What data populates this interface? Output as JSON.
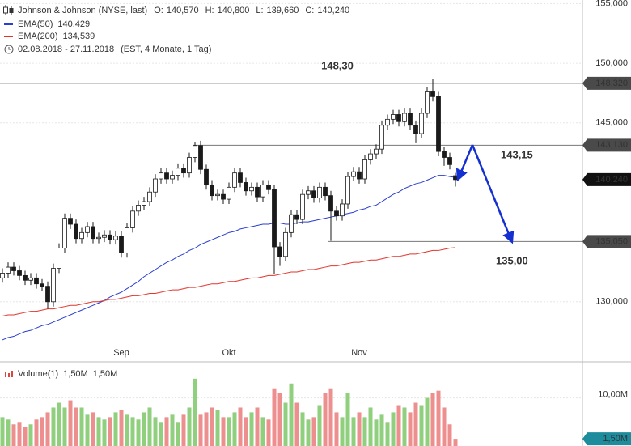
{
  "chart_data": {
    "type": "candlestick",
    "title": "Johnson & Johnson (NYSE, last)",
    "quote": [
      {
        "key": "O:",
        "value": 140.57,
        "label": "140,570"
      },
      {
        "key": "H:",
        "value": 140.8,
        "label": "140,800"
      },
      {
        "key": "L:",
        "value": 139.66,
        "label": "139,660"
      },
      {
        "key": "C:",
        "value": 140.24,
        "label": "140,240"
      }
    ],
    "period": "02.08.2018 - 27.11.2018",
    "period_note": "(EST, 4 Monate, 1 Tag)",
    "categories": [
      null,
      null,
      null,
      null,
      null,
      null,
      null,
      null,
      null,
      null,
      null,
      null,
      null,
      null,
      null,
      null,
      null,
      null,
      null,
      null,
      null,
      "Sep",
      null,
      null,
      null,
      null,
      null,
      null,
      null,
      null,
      null,
      null,
      null,
      null,
      null,
      null,
      null,
      null,
      null,
      null,
      "Okt",
      null,
      null,
      null,
      null,
      null,
      null,
      null,
      null,
      null,
      null,
      null,
      null,
      null,
      null,
      null,
      null,
      null,
      null,
      null,
      null,
      null,
      null,
      "Nov",
      null,
      null,
      null,
      null,
      null,
      null,
      null,
      null,
      null,
      null,
      null,
      null,
      null,
      null,
      null,
      null,
      null
    ],
    "open": [
      132.0,
      132.4,
      132.9,
      132.6,
      132.2,
      131.8,
      132.0,
      131.5,
      131.3,
      130.0,
      132.8,
      134.5,
      137.0,
      136.5,
      135.3,
      135.8,
      136.3,
      135.3,
      135.4,
      135.6,
      135.2,
      135.5,
      134.1,
      136.2,
      137.6,
      138.1,
      138.4,
      139.2,
      140.3,
      140.8,
      140.3,
      140.6,
      141.2,
      140.8,
      142.1,
      143.1,
      141.1,
      139.8,
      138.9,
      139.0,
      138.6,
      139.6,
      140.8,
      140.0,
      139.3,
      139.6,
      138.8,
      139.8,
      139.4,
      134.6,
      133.8,
      135.8,
      137.3,
      136.9,
      139.0,
      139.3,
      138.7,
      139.6,
      138.9,
      137.6,
      137.2,
      138.2,
      140.5,
      140.9,
      140.3,
      141.9,
      142.4,
      142.8,
      144.8,
      145.3,
      145.7,
      145.1,
      145.8,
      144.8,
      144.1,
      145.8,
      147.6,
      147.2,
      142.6,
      142.1,
      140.57
    ],
    "high": [
      132.8,
      133.3,
      133.3,
      133.0,
      132.6,
      132.4,
      132.4,
      131.9,
      131.7,
      133.2,
      134.9,
      137.4,
      137.4,
      136.9,
      136.2,
      136.7,
      136.7,
      135.8,
      136.0,
      136.0,
      135.9,
      135.9,
      136.6,
      138.0,
      138.5,
      138.8,
      139.6,
      140.7,
      141.2,
      141.2,
      141.0,
      141.6,
      141.6,
      142.5,
      143.4,
      143.5,
      141.5,
      140.2,
      139.4,
      139.4,
      140.0,
      141.2,
      141.2,
      140.4,
      140.0,
      140.0,
      140.2,
      140.2,
      139.8,
      135.0,
      136.2,
      137.7,
      137.7,
      139.4,
      139.7,
      139.7,
      140.0,
      140.0,
      139.3,
      138.0,
      138.6,
      140.9,
      141.3,
      141.3,
      142.3,
      142.8,
      143.2,
      145.2,
      145.7,
      146.1,
      146.1,
      146.2,
      146.2,
      145.2,
      146.2,
      148.0,
      148.7,
      147.6,
      143.0,
      142.5,
      140.8
    ],
    "low": [
      131.6,
      132.0,
      132.2,
      131.8,
      131.4,
      131.4,
      131.1,
      130.9,
      129.4,
      129.6,
      132.4,
      134.1,
      136.1,
      134.9,
      134.9,
      135.4,
      134.9,
      134.9,
      135.0,
      134.8,
      134.8,
      133.7,
      133.7,
      135.8,
      137.2,
      137.7,
      138.0,
      138.8,
      139.9,
      139.9,
      139.9,
      140.2,
      140.4,
      140.4,
      141.7,
      140.7,
      139.4,
      138.5,
      138.5,
      138.2,
      138.2,
      139.2,
      139.6,
      138.9,
      138.9,
      138.4,
      138.4,
      139.0,
      132.3,
      133.0,
      133.4,
      135.4,
      136.5,
      136.5,
      138.6,
      138.3,
      138.3,
      138.5,
      135.1,
      136.8,
      136.8,
      137.8,
      140.1,
      139.9,
      139.9,
      141.5,
      142.0,
      142.4,
      144.4,
      144.9,
      144.7,
      144.7,
      144.4,
      143.3,
      143.7,
      145.4,
      146.8,
      142.2,
      141.4,
      141.1,
      139.66
    ],
    "close": [
      132.4,
      132.9,
      132.6,
      132.2,
      131.8,
      132.0,
      131.5,
      131.3,
      130.0,
      132.8,
      134.5,
      137.0,
      136.5,
      135.3,
      135.8,
      136.3,
      135.3,
      135.4,
      135.6,
      135.2,
      135.5,
      134.1,
      136.2,
      137.6,
      138.1,
      138.4,
      139.2,
      140.3,
      140.8,
      140.3,
      140.6,
      141.2,
      140.8,
      142.1,
      143.1,
      141.1,
      139.8,
      138.9,
      139.0,
      138.6,
      139.6,
      140.8,
      140.0,
      139.3,
      139.6,
      138.8,
      139.8,
      139.4,
      134.6,
      133.8,
      135.8,
      137.3,
      136.9,
      139.0,
      139.3,
      138.7,
      139.6,
      138.9,
      137.6,
      137.2,
      138.2,
      140.5,
      140.9,
      140.3,
      141.9,
      142.4,
      142.8,
      144.8,
      145.3,
      145.7,
      145.1,
      145.8,
      144.8,
      144.1,
      145.8,
      147.6,
      147.2,
      142.6,
      142.1,
      141.5,
      140.24
    ],
    "up_color": "#ffffff",
    "down_color": "#1a1a1a",
    "indicators": [
      {
        "name": "EMA(50)",
        "color": "#2a3fd0",
        "last": {
          "value": 140.429,
          "label": "140,429"
        },
        "values": [
          126.8,
          127.0,
          127.1,
          127.3,
          127.5,
          127.6,
          127.8,
          128.0,
          128.1,
          128.3,
          128.5,
          128.7,
          128.9,
          129.1,
          129.3,
          129.5,
          129.7,
          129.9,
          130.1,
          130.4,
          130.6,
          130.8,
          131.1,
          131.4,
          131.7,
          132.1,
          132.4,
          132.7,
          133.0,
          133.3,
          133.5,
          133.8,
          134.0,
          134.3,
          134.5,
          134.8,
          135.0,
          135.2,
          135.4,
          135.6,
          135.8,
          135.9,
          136.1,
          136.2,
          136.3,
          136.4,
          136.5,
          136.5,
          136.6,
          136.6,
          136.5,
          136.5,
          136.6,
          136.7,
          136.7,
          136.8,
          136.9,
          137.0,
          137.1,
          137.2,
          137.3,
          137.4,
          137.5,
          137.7,
          137.8,
          138.0,
          138.1,
          138.4,
          138.7,
          139.0,
          139.2,
          139.5,
          139.7,
          139.9,
          140.0,
          140.2,
          140.4,
          140.6,
          140.6,
          140.5,
          140.429
        ]
      },
      {
        "name": "EMA(200)",
        "color": "#e0352b",
        "last": {
          "value": 134.539,
          "label": "134,539"
        },
        "values": [
          128.8,
          128.9,
          128.9,
          129.0,
          129.1,
          129.2,
          129.2,
          129.3,
          129.4,
          129.4,
          129.5,
          129.6,
          129.7,
          129.7,
          129.8,
          129.9,
          130.0,
          130.0,
          130.1,
          130.2,
          130.2,
          130.3,
          130.4,
          130.5,
          130.5,
          130.6,
          130.7,
          130.7,
          130.8,
          130.9,
          131.0,
          131.0,
          131.1,
          131.2,
          131.2,
          131.3,
          131.4,
          131.5,
          131.5,
          131.6,
          131.7,
          131.7,
          131.8,
          131.9,
          132.0,
          132.0,
          132.1,
          132.2,
          132.2,
          132.3,
          132.4,
          132.5,
          132.5,
          132.6,
          132.7,
          132.7,
          132.8,
          132.9,
          133.0,
          133.0,
          133.1,
          133.2,
          133.3,
          133.3,
          133.4,
          133.5,
          133.5,
          133.6,
          133.7,
          133.8,
          133.8,
          133.9,
          134.0,
          134.0,
          134.1,
          134.2,
          134.3,
          134.3,
          134.4,
          134.5,
          134.539
        ]
      }
    ],
    "ylim": [
      125.1,
      155.3
    ],
    "yticks": [
      {
        "value": 130,
        "label": "130,000"
      },
      {
        "value": 145,
        "label": "145,000"
      },
      {
        "value": 150,
        "label": "150,000"
      },
      {
        "value": 155,
        "label": "155,000"
      }
    ],
    "grid": true,
    "levels": [
      {
        "value": 148.32,
        "label": "148,320",
        "start": 0,
        "note": {
          "value": 148.3,
          "label": "148,30"
        }
      },
      {
        "value": 143.13,
        "label": "143,130",
        "start": 34
      },
      {
        "value": 135.05,
        "label": "135,050",
        "start": 58
      }
    ],
    "forecast": {
      "color": "#1530d0",
      "x": [
        83,
        90
      ],
      "values": [
        143.15,
        135.0
      ],
      "value_labels": [
        "143,15",
        "135,00"
      ]
    },
    "volume": {
      "name": "Volume(1)",
      "values": [
        6,
        5.5,
        4.5,
        5,
        4,
        4.5,
        5.5,
        6,
        7,
        8,
        9,
        8,
        9.5,
        8,
        8,
        6.5,
        7,
        6,
        5.5,
        6,
        7,
        7.5,
        6.5,
        6,
        5.5,
        7,
        8,
        6,
        5,
        6,
        6.5,
        5,
        6.5,
        8,
        14,
        6.5,
        7,
        8,
        7.5,
        6,
        6,
        7,
        8,
        6,
        7,
        8,
        6,
        5.5,
        12,
        11,
        9,
        13,
        9,
        7,
        5.5,
        6,
        8.5,
        11,
        12,
        7,
        6,
        11,
        6,
        7,
        6,
        8,
        5.5,
        6.5,
        5,
        7,
        8.5,
        8,
        7,
        9,
        8.5,
        10,
        11,
        11.5,
        8,
        4.5,
        1.5
      ],
      "up_color": "#8fcf7e",
      "down_color": "#ee8f8f",
      "ylim": [
        0,
        17
      ],
      "yticks": [
        {
          "value": 10,
          "label": "10,00M"
        }
      ],
      "legend_values": [
        {
          "value": 1.5,
          "label": "1,50M",
          "color": "#d9473f"
        },
        {
          "value": 1.5,
          "label": "1,50M",
          "color": "#1d98a8"
        }
      ],
      "last": {
        "value": 1.5,
        "label": "1,50M",
        "color": "#1d8c9c"
      }
    }
  }
}
